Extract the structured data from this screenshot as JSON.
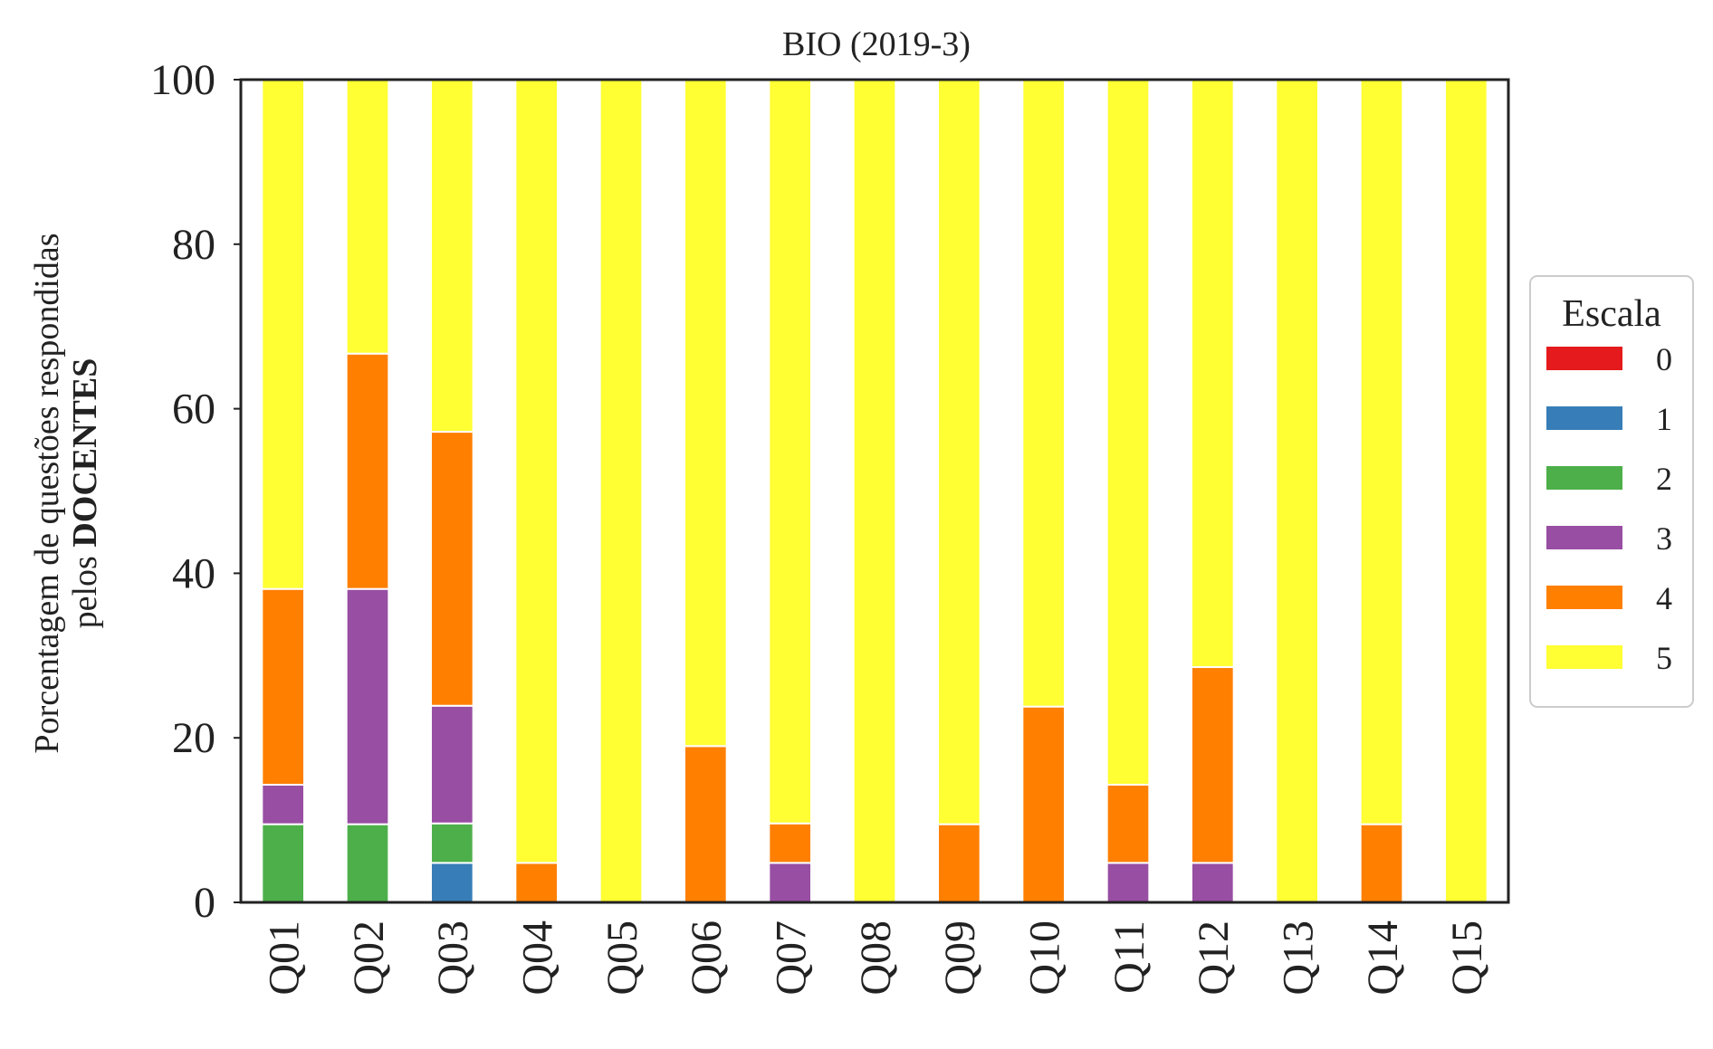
{
  "chart_data": {
    "type": "bar",
    "stacked": true,
    "title": "BIO (2019-3)",
    "ylabel_line1": "Porcentagem de questões respondidas",
    "ylabel_line2_prefix": "pelos",
    "ylabel_line2_bold": "DOCENTES",
    "xlabel": "",
    "ylim": [
      0,
      100
    ],
    "yticks": [
      "0",
      "20",
      "40",
      "60",
      "80",
      "100"
    ],
    "grid": false,
    "legend_position": "right",
    "legend_title": "Escala",
    "categories": [
      "Q01",
      "Q02",
      "Q03",
      "Q04",
      "Q05",
      "Q06",
      "Q07",
      "Q08",
      "Q09",
      "Q10",
      "Q11",
      "Q12",
      "Q13",
      "Q14",
      "Q15"
    ],
    "series": [
      {
        "name": "0",
        "color": "#e41a1c",
        "values": [
          0,
          0,
          0,
          0,
          0,
          0,
          0,
          0,
          0,
          0,
          0,
          0,
          0,
          0,
          0
        ]
      },
      {
        "name": "1",
        "color": "#377eb8",
        "values": [
          0,
          0,
          4.8,
          0,
          0,
          0,
          0,
          0,
          0,
          0,
          0,
          0,
          0,
          0,
          0
        ]
      },
      {
        "name": "2",
        "color": "#4daf4a",
        "values": [
          9.5,
          9.5,
          4.8,
          0,
          0,
          0,
          0,
          0,
          0,
          0,
          0,
          0,
          0,
          0,
          0
        ]
      },
      {
        "name": "3",
        "color": "#984ea3",
        "values": [
          4.8,
          28.6,
          14.3,
          0,
          0,
          0,
          4.8,
          0,
          0,
          0,
          4.8,
          4.8,
          0,
          0,
          0
        ]
      },
      {
        "name": "4",
        "color": "#ff7f00",
        "values": [
          23.8,
          28.6,
          33.3,
          4.8,
          0,
          19.0,
          4.8,
          0,
          9.5,
          23.8,
          9.5,
          23.8,
          0,
          9.5,
          0
        ]
      },
      {
        "name": "5",
        "color": "#ffff33",
        "values": [
          61.9,
          33.3,
          42.9,
          95.2,
          100,
          81.0,
          90.5,
          100,
          90.5,
          76.2,
          85.7,
          71.4,
          100,
          90.5,
          100
        ]
      }
    ]
  }
}
